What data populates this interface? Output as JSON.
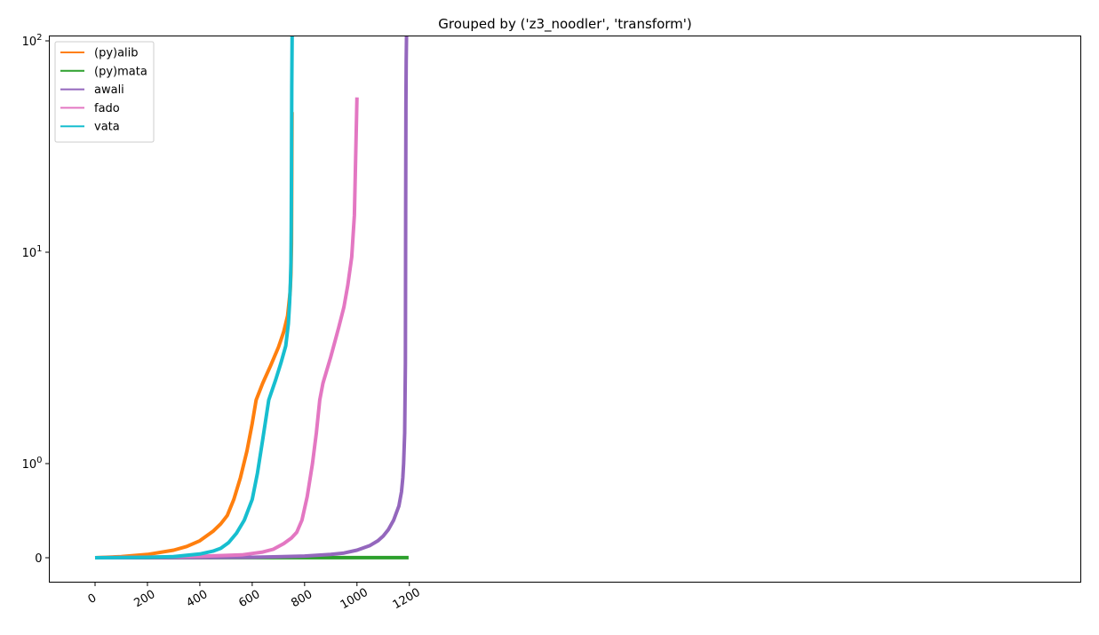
{
  "chart_data": {
    "type": "line",
    "title": "Grouped by ('z3_noodler', 'transform')",
    "xlabel": "",
    "ylabel": "",
    "xlim": [
      -60,
      1245
    ],
    "yscale": "symlog",
    "ylim": [
      -0.4,
      180
    ],
    "grid": false,
    "legend_position": "top-left",
    "x_ticks": [
      {
        "value": 0,
        "label": "0"
      },
      {
        "value": 200,
        "label": "200"
      },
      {
        "value": 400,
        "label": "400"
      },
      {
        "value": 600,
        "label": "600"
      },
      {
        "value": 800,
        "label": "800"
      },
      {
        "value": 1000,
        "label": "1000"
      },
      {
        "value": 1200,
        "label": "1200"
      }
    ],
    "x_tick_rotation": 30,
    "y_ticks": [
      {
        "value": 0,
        "label": "0"
      },
      {
        "value": 1,
        "label": "10^0",
        "base": "10",
        "exp": "0"
      },
      {
        "value": 10,
        "label": "10^1",
        "base": "10",
        "exp": "1"
      },
      {
        "value": 100,
        "label": "10^2",
        "base": "10",
        "exp": "2"
      }
    ],
    "series": [
      {
        "name": "(py)alib",
        "color": "#ff7f0e",
        "points": [
          [
            0,
            0
          ],
          [
            100,
            0.012
          ],
          [
            200,
            0.035
          ],
          [
            300,
            0.08
          ],
          [
            350,
            0.12
          ],
          [
            400,
            0.18
          ],
          [
            450,
            0.28
          ],
          [
            480,
            0.36
          ],
          [
            505,
            0.45
          ],
          [
            530,
            0.62
          ],
          [
            555,
            0.85
          ],
          [
            580,
            1.15
          ],
          [
            600,
            1.55
          ],
          [
            615,
            2.0
          ],
          [
            640,
            2.4
          ],
          [
            670,
            2.9
          ],
          [
            700,
            3.55
          ],
          [
            720,
            4.2
          ],
          [
            735,
            5.0
          ],
          [
            745,
            6.5
          ],
          [
            748,
            8.0
          ],
          [
            750,
            11.0
          ],
          [
            752,
            46.0
          ]
        ]
      },
      {
        "name": "(py)mata",
        "color": "#2ca02c",
        "points": [
          [
            0,
            0
          ],
          [
            200,
            0.0004
          ],
          [
            400,
            0.0006
          ],
          [
            600,
            0.0008
          ],
          [
            800,
            0.001
          ],
          [
            1000,
            0.0012
          ],
          [
            1197,
            0.0014
          ]
        ]
      },
      {
        "name": "awali",
        "color": "#9467bd",
        "points": [
          [
            0,
            0
          ],
          [
            200,
            0.001
          ],
          [
            400,
            0.002
          ],
          [
            600,
            0.005
          ],
          [
            700,
            0.01
          ],
          [
            800,
            0.018
          ],
          [
            900,
            0.035
          ],
          [
            950,
            0.05
          ],
          [
            1000,
            0.08
          ],
          [
            1050,
            0.13
          ],
          [
            1080,
            0.18
          ],
          [
            1100,
            0.23
          ],
          [
            1120,
            0.3
          ],
          [
            1140,
            0.4
          ],
          [
            1160,
            0.55
          ],
          [
            1170,
            0.7
          ],
          [
            1175,
            0.85
          ],
          [
            1178,
            1.0
          ],
          [
            1182,
            1.4
          ],
          [
            1185,
            3.0
          ],
          [
            1186,
            15.0
          ],
          [
            1187,
            50.0
          ],
          [
            1188,
            80.0
          ],
          [
            1190,
            125.0
          ]
        ]
      },
      {
        "name": "fado",
        "color": "#e377c2",
        "points": [
          [
            0,
            0
          ],
          [
            200,
            0.006
          ],
          [
            400,
            0.015
          ],
          [
            500,
            0.025
          ],
          [
            560,
            0.03
          ],
          [
            600,
            0.045
          ],
          [
            640,
            0.06
          ],
          [
            680,
            0.09
          ],
          [
            720,
            0.15
          ],
          [
            750,
            0.21
          ],
          [
            770,
            0.27
          ],
          [
            790,
            0.4
          ],
          [
            810,
            0.65
          ],
          [
            830,
            1.0
          ],
          [
            845,
            1.4
          ],
          [
            858,
            2.0
          ],
          [
            870,
            2.4
          ],
          [
            900,
            3.2
          ],
          [
            930,
            4.4
          ],
          [
            950,
            5.5
          ],
          [
            965,
            7.0
          ],
          [
            980,
            9.5
          ],
          [
            990,
            15.0
          ],
          [
            1000,
            54.0
          ]
        ]
      },
      {
        "name": "vata",
        "color": "#17becf",
        "points": [
          [
            0,
            0
          ],
          [
            200,
            0.005
          ],
          [
            300,
            0.012
          ],
          [
            400,
            0.04
          ],
          [
            450,
            0.07
          ],
          [
            480,
            0.1
          ],
          [
            510,
            0.16
          ],
          [
            540,
            0.26
          ],
          [
            570,
            0.4
          ],
          [
            600,
            0.62
          ],
          [
            620,
            0.9
          ],
          [
            640,
            1.3
          ],
          [
            663,
            2.0
          ],
          [
            690,
            2.5
          ],
          [
            710,
            3.0
          ],
          [
            728,
            3.6
          ],
          [
            738,
            4.6
          ],
          [
            743,
            5.8
          ],
          [
            746,
            7.2
          ],
          [
            748,
            9.0
          ],
          [
            749,
            13.0
          ],
          [
            750,
            25.0
          ],
          [
            751,
            60.0
          ],
          [
            752,
            90.0
          ],
          [
            753,
            135.0
          ]
        ]
      }
    ]
  }
}
